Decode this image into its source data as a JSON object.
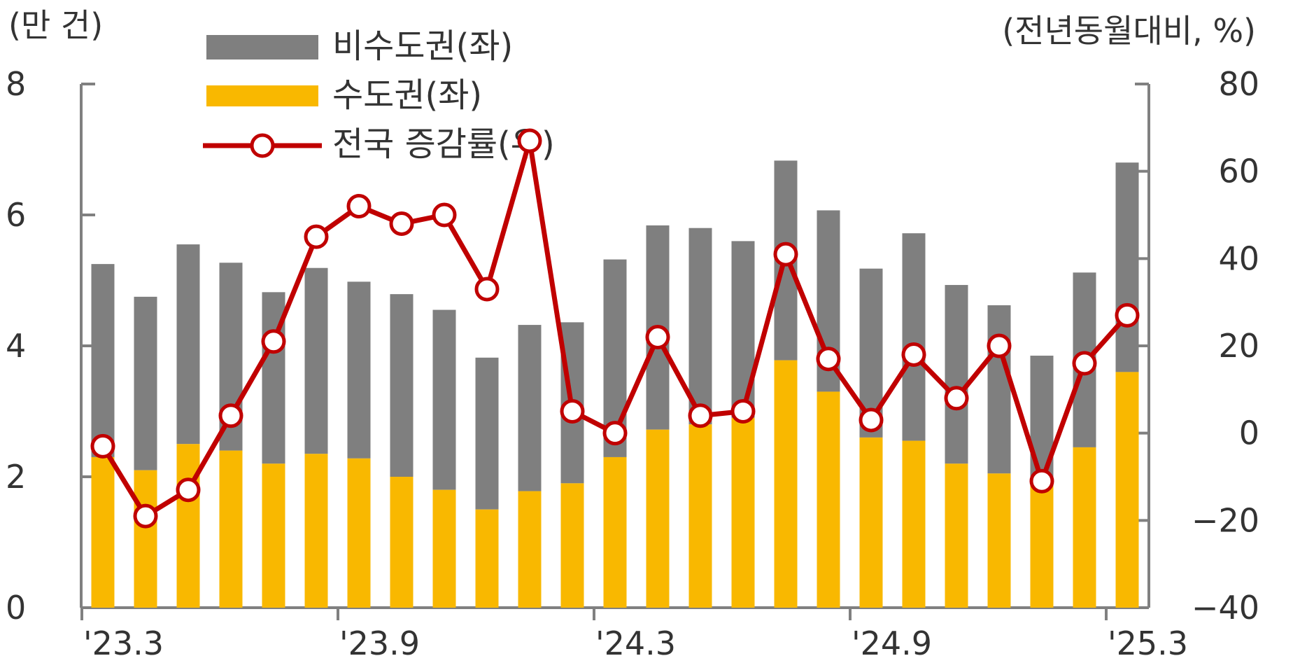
{
  "chart_data": {
    "type": "bar",
    "left_axis_unit": "(만 건)",
    "right_axis_unit": "(전년동월대비, %)",
    "x_tick_labels": [
      "'23.3",
      "'23.9",
      "'24.3",
      "'24.9",
      "'25.3"
    ],
    "x_tick_indices": [
      0,
      6,
      12,
      18,
      24
    ],
    "categories": [
      "'23.3",
      "'23.4",
      "'23.5",
      "'23.6",
      "'23.7",
      "'23.8",
      "'23.9",
      "'23.10",
      "'23.11",
      "'23.12",
      "'24.1",
      "'24.2",
      "'24.3",
      "'24.4",
      "'24.5",
      "'24.6",
      "'24.7",
      "'24.8",
      "'24.9",
      "'24.10",
      "'24.11",
      "'24.12",
      "'25.1",
      "'25.2",
      "'25.3"
    ],
    "ylim_left": [
      0,
      8
    ],
    "ylim_right": [
      -40,
      80
    ],
    "yticks_left": [
      0,
      2,
      4,
      6,
      8
    ],
    "yticks_right": [
      -40,
      -20,
      0,
      20,
      40,
      60,
      80
    ],
    "stacked": true,
    "series": [
      {
        "name": "수도권(좌)",
        "axis": "left",
        "kind": "bar",
        "color": "#F9B800",
        "values": [
          2.3,
          2.1,
          2.5,
          2.4,
          2.2,
          2.35,
          2.28,
          2.0,
          1.8,
          1.5,
          1.78,
          1.9,
          2.3,
          2.72,
          2.8,
          2.9,
          3.78,
          3.3,
          2.6,
          2.55,
          2.2,
          2.05,
          1.9,
          2.45,
          3.6
        ]
      },
      {
        "name": "비수도권(좌)",
        "axis": "left",
        "kind": "bar",
        "color": "#7F7F7F",
        "values": [
          2.95,
          2.65,
          3.05,
          2.87,
          2.62,
          2.84,
          2.7,
          2.79,
          2.75,
          2.32,
          2.54,
          2.46,
          3.02,
          3.12,
          3.0,
          2.7,
          3.05,
          2.77,
          2.58,
          3.17,
          2.73,
          2.57,
          1.95,
          2.67,
          3.2
        ]
      },
      {
        "name": "전국 증감률(우)",
        "axis": "right",
        "kind": "line",
        "color": "#C00000",
        "values": [
          -3,
          -19,
          -13,
          4,
          21,
          45,
          52,
          48,
          50,
          33,
          67,
          5,
          0,
          22,
          4,
          5,
          41,
          17,
          3,
          18,
          8,
          20,
          -11,
          16,
          27
        ]
      }
    ],
    "legend": {
      "position": "top-left",
      "items": [
        {
          "label": "비수도권(좌)",
          "kind": "bar",
          "color": "#7F7F7F"
        },
        {
          "label": "수도권(좌)",
          "kind": "bar",
          "color": "#F9B800"
        },
        {
          "label": "전국 증감률(우)",
          "kind": "line",
          "color": "#C00000"
        }
      ]
    },
    "colors": {
      "axis": "#808080",
      "text": "#333333",
      "marker_fill": "#ffffff"
    },
    "grid": false
  }
}
